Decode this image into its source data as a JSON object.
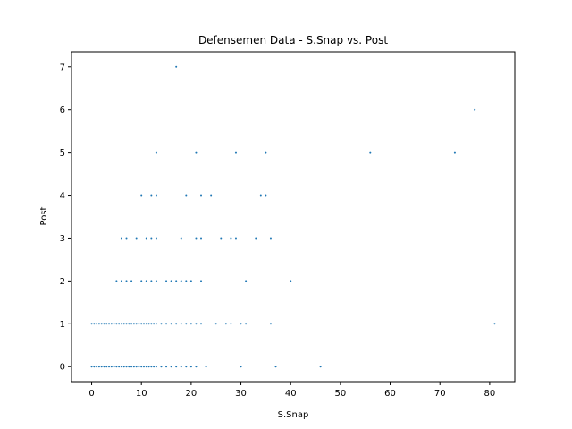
{
  "chart_data": {
    "type": "scatter",
    "title": "Defensemen Data - S.Snap vs. Post",
    "xlabel": "S.Snap",
    "ylabel": "Post",
    "xlim": [
      -4.05,
      85.05
    ],
    "ylim": [
      -0.35,
      7.35
    ],
    "xticks": [
      0,
      10,
      20,
      30,
      40,
      50,
      60,
      70,
      80
    ],
    "yticks": [
      0,
      1,
      2,
      3,
      4,
      5,
      6,
      7
    ],
    "grid": false,
    "legend": "none",
    "marker_color": "#1f77b4",
    "points": [
      {
        "x": 0,
        "y": 0
      },
      {
        "x": 0.5,
        "y": 0
      },
      {
        "x": 1,
        "y": 0
      },
      {
        "x": 1.5,
        "y": 0
      },
      {
        "x": 2,
        "y": 0
      },
      {
        "x": 2.5,
        "y": 0
      },
      {
        "x": 3,
        "y": 0
      },
      {
        "x": 3.5,
        "y": 0
      },
      {
        "x": 4,
        "y": 0
      },
      {
        "x": 4.5,
        "y": 0
      },
      {
        "x": 5,
        "y": 0
      },
      {
        "x": 5.5,
        "y": 0
      },
      {
        "x": 6,
        "y": 0
      },
      {
        "x": 6.5,
        "y": 0
      },
      {
        "x": 7,
        "y": 0
      },
      {
        "x": 7.5,
        "y": 0
      },
      {
        "x": 8,
        "y": 0
      },
      {
        "x": 8.5,
        "y": 0
      },
      {
        "x": 9,
        "y": 0
      },
      {
        "x": 9.5,
        "y": 0
      },
      {
        "x": 10,
        "y": 0
      },
      {
        "x": 10.5,
        "y": 0
      },
      {
        "x": 11,
        "y": 0
      },
      {
        "x": 11.5,
        "y": 0
      },
      {
        "x": 12,
        "y": 0
      },
      {
        "x": 12.5,
        "y": 0
      },
      {
        "x": 13,
        "y": 0
      },
      {
        "x": 14,
        "y": 0
      },
      {
        "x": 15,
        "y": 0
      },
      {
        "x": 16,
        "y": 0
      },
      {
        "x": 17,
        "y": 0
      },
      {
        "x": 18,
        "y": 0
      },
      {
        "x": 19,
        "y": 0
      },
      {
        "x": 20,
        "y": 0
      },
      {
        "x": 21,
        "y": 0
      },
      {
        "x": 23,
        "y": 0
      },
      {
        "x": 30,
        "y": 0
      },
      {
        "x": 37,
        "y": 0
      },
      {
        "x": 46,
        "y": 0
      },
      {
        "x": 0,
        "y": 1
      },
      {
        "x": 0.5,
        "y": 1
      },
      {
        "x": 1,
        "y": 1
      },
      {
        "x": 1.5,
        "y": 1
      },
      {
        "x": 2,
        "y": 1
      },
      {
        "x": 2.5,
        "y": 1
      },
      {
        "x": 3,
        "y": 1
      },
      {
        "x": 3.5,
        "y": 1
      },
      {
        "x": 4,
        "y": 1
      },
      {
        "x": 4.5,
        "y": 1
      },
      {
        "x": 5,
        "y": 1
      },
      {
        "x": 5.5,
        "y": 1
      },
      {
        "x": 6,
        "y": 1
      },
      {
        "x": 6.5,
        "y": 1
      },
      {
        "x": 7,
        "y": 1
      },
      {
        "x": 7.5,
        "y": 1
      },
      {
        "x": 8,
        "y": 1
      },
      {
        "x": 8.5,
        "y": 1
      },
      {
        "x": 9,
        "y": 1
      },
      {
        "x": 9.5,
        "y": 1
      },
      {
        "x": 10,
        "y": 1
      },
      {
        "x": 10.5,
        "y": 1
      },
      {
        "x": 11,
        "y": 1
      },
      {
        "x": 11.5,
        "y": 1
      },
      {
        "x": 12,
        "y": 1
      },
      {
        "x": 12.5,
        "y": 1
      },
      {
        "x": 13,
        "y": 1
      },
      {
        "x": 14,
        "y": 1
      },
      {
        "x": 15,
        "y": 1
      },
      {
        "x": 16,
        "y": 1
      },
      {
        "x": 17,
        "y": 1
      },
      {
        "x": 18,
        "y": 1
      },
      {
        "x": 19,
        "y": 1
      },
      {
        "x": 20,
        "y": 1
      },
      {
        "x": 21,
        "y": 1
      },
      {
        "x": 22,
        "y": 1
      },
      {
        "x": 25,
        "y": 1
      },
      {
        "x": 27,
        "y": 1
      },
      {
        "x": 28,
        "y": 1
      },
      {
        "x": 30,
        "y": 1
      },
      {
        "x": 31,
        "y": 1
      },
      {
        "x": 36,
        "y": 1
      },
      {
        "x": 81,
        "y": 1
      },
      {
        "x": 5,
        "y": 2
      },
      {
        "x": 6,
        "y": 2
      },
      {
        "x": 7,
        "y": 2
      },
      {
        "x": 8,
        "y": 2
      },
      {
        "x": 10,
        "y": 2
      },
      {
        "x": 11,
        "y": 2
      },
      {
        "x": 12,
        "y": 2
      },
      {
        "x": 13,
        "y": 2
      },
      {
        "x": 15,
        "y": 2
      },
      {
        "x": 16,
        "y": 2
      },
      {
        "x": 17,
        "y": 2
      },
      {
        "x": 18,
        "y": 2
      },
      {
        "x": 19,
        "y": 2
      },
      {
        "x": 20,
        "y": 2
      },
      {
        "x": 22,
        "y": 2
      },
      {
        "x": 31,
        "y": 2
      },
      {
        "x": 40,
        "y": 2
      },
      {
        "x": 6,
        "y": 3
      },
      {
        "x": 7,
        "y": 3
      },
      {
        "x": 9,
        "y": 3
      },
      {
        "x": 11,
        "y": 3
      },
      {
        "x": 12,
        "y": 3
      },
      {
        "x": 13,
        "y": 3
      },
      {
        "x": 18,
        "y": 3
      },
      {
        "x": 21,
        "y": 3
      },
      {
        "x": 22,
        "y": 3
      },
      {
        "x": 26,
        "y": 3
      },
      {
        "x": 28,
        "y": 3
      },
      {
        "x": 29,
        "y": 3
      },
      {
        "x": 33,
        "y": 3
      },
      {
        "x": 36,
        "y": 3
      },
      {
        "x": 10,
        "y": 4
      },
      {
        "x": 12,
        "y": 4
      },
      {
        "x": 13,
        "y": 4
      },
      {
        "x": 19,
        "y": 4
      },
      {
        "x": 22,
        "y": 4
      },
      {
        "x": 24,
        "y": 4
      },
      {
        "x": 34,
        "y": 4
      },
      {
        "x": 35,
        "y": 4
      },
      {
        "x": 13,
        "y": 5
      },
      {
        "x": 21,
        "y": 5
      },
      {
        "x": 29,
        "y": 5
      },
      {
        "x": 35,
        "y": 5
      },
      {
        "x": 56,
        "y": 5
      },
      {
        "x": 73,
        "y": 5
      },
      {
        "x": 77,
        "y": 6
      },
      {
        "x": 17,
        "y": 7
      }
    ]
  }
}
